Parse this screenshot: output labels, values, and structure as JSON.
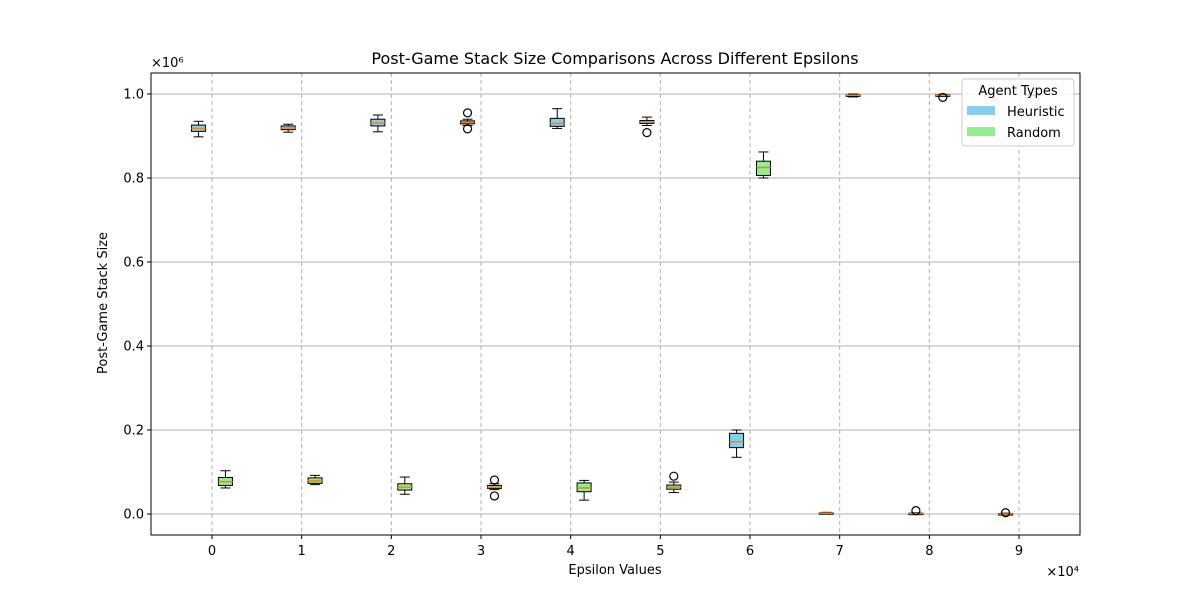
{
  "chart_data": {
    "type": "box",
    "title": "Post-Game Stack Size Comparisons Across Different Epsilons",
    "xlabel": "Epsilon Values",
    "ylabel": "Post-Game Stack Size",
    "x_multiplier_label": "×10⁴",
    "y_multiplier_label": "×10⁶",
    "xlim": [
      -0.68,
      9.68
    ],
    "ylim": [
      -0.05,
      1.05
    ],
    "x_ticks": [
      0,
      1,
      2,
      3,
      4,
      5,
      6,
      7,
      8,
      9
    ],
    "y_ticks": [
      0.0,
      0.2,
      0.4,
      0.6,
      0.8,
      1.0
    ],
    "x_tick_labels": [
      "0",
      "1",
      "2",
      "3",
      "4",
      "5",
      "6",
      "7",
      "8",
      "9"
    ],
    "y_tick_labels": [
      "0.0",
      "0.2",
      "0.4",
      "0.6",
      "0.8",
      "1.0"
    ],
    "grid": true,
    "legend_position": "top-right",
    "legend": {
      "title": "Agent Types",
      "entries": [
        {
          "label": "Heuristic",
          "color": "#87CEEB"
        },
        {
          "label": "Random",
          "color": "#90EE90"
        }
      ]
    },
    "median_color": "#ff7f0e",
    "series": [
      {
        "name": "Heuristic",
        "color": "#87CEEB",
        "boxes": [
          {
            "x": -0.15,
            "whisker_low": 0.898,
            "q1": 0.911,
            "median": 0.918,
            "q3": 0.926,
            "whisker_high": 0.935,
            "outliers": []
          },
          {
            "x": 0.85,
            "whisker_low": 0.909,
            "q1": 0.915,
            "median": 0.919,
            "q3": 0.924,
            "whisker_high": 0.928,
            "outliers": []
          },
          {
            "x": 1.85,
            "whisker_low": 0.91,
            "q1": 0.924,
            "median": 0.931,
            "q3": 0.94,
            "whisker_high": 0.95,
            "outliers": []
          },
          {
            "x": 2.85,
            "whisker_low": 0.925,
            "q1": 0.929,
            "median": 0.933,
            "q3": 0.936,
            "whisker_high": 0.94,
            "outliers": [
              0.955,
              0.917
            ]
          },
          {
            "x": 3.85,
            "whisker_low": 0.918,
            "q1": 0.923,
            "median": 0.93,
            "q3": 0.942,
            "whisker_high": 0.965,
            "outliers": []
          },
          {
            "x": 4.85,
            "whisker_low": 0.925,
            "q1": 0.93,
            "median": 0.934,
            "q3": 0.937,
            "whisker_high": 0.945,
            "outliers": [
              0.908
            ]
          },
          {
            "x": 5.85,
            "whisker_low": 0.135,
            "q1": 0.158,
            "median": 0.172,
            "q3": 0.192,
            "whisker_high": 0.2,
            "outliers": []
          },
          {
            "x": 6.85,
            "whisker_low": 0.0,
            "q1": 0.001,
            "median": 0.002,
            "q3": 0.003,
            "whisker_high": 0.004,
            "outliers": []
          },
          {
            "x": 7.85,
            "whisker_low": 0.0,
            "q1": 0.0,
            "median": 0.001,
            "q3": 0.002,
            "whisker_high": 0.003,
            "outliers": [
              0.008
            ]
          },
          {
            "x": 8.85,
            "whisker_low": 0.0,
            "q1": 0.0,
            "median": 0.0,
            "q3": 0.001,
            "whisker_high": 0.002,
            "outliers": [
              0.003
            ]
          }
        ]
      },
      {
        "name": "Random",
        "color": "#90EE90",
        "boxes": [
          {
            "x": 0.15,
            "whisker_low": 0.062,
            "q1": 0.068,
            "median": 0.077,
            "q3": 0.087,
            "whisker_high": 0.103,
            "outliers": []
          },
          {
            "x": 1.15,
            "whisker_low": 0.07,
            "q1": 0.073,
            "median": 0.079,
            "q3": 0.086,
            "whisker_high": 0.092,
            "outliers": []
          },
          {
            "x": 2.15,
            "whisker_low": 0.047,
            "q1": 0.057,
            "median": 0.064,
            "q3": 0.072,
            "whisker_high": 0.088,
            "outliers": []
          },
          {
            "x": 3.15,
            "whisker_low": 0.058,
            "q1": 0.061,
            "median": 0.064,
            "q3": 0.068,
            "whisker_high": 0.072,
            "outliers": [
              0.081,
              0.043
            ]
          },
          {
            "x": 4.15,
            "whisker_low": 0.033,
            "q1": 0.053,
            "median": 0.062,
            "q3": 0.074,
            "whisker_high": 0.08,
            "outliers": []
          },
          {
            "x": 5.15,
            "whisker_low": 0.051,
            "q1": 0.059,
            "median": 0.064,
            "q3": 0.069,
            "whisker_high": 0.076,
            "outliers": [
              0.09
            ]
          },
          {
            "x": 6.15,
            "whisker_low": 0.8,
            "q1": 0.806,
            "median": 0.825,
            "q3": 0.84,
            "whisker_high": 0.862,
            "outliers": []
          },
          {
            "x": 7.15,
            "whisker_low": 0.993,
            "q1": 0.995,
            "median": 0.997,
            "q3": 0.998,
            "whisker_high": 1.0,
            "outliers": []
          },
          {
            "x": 8.15,
            "whisker_low": 0.995,
            "q1": 0.996,
            "median": 0.997,
            "q3": 0.998,
            "whisker_high": 0.999,
            "outliers": [
              0.992
            ]
          },
          {
            "x": 9.15,
            "whisker_low": 0.998,
            "q1": 0.999,
            "median": 0.999,
            "q3": 1.0,
            "whisker_high": 1.0,
            "outliers": []
          }
        ]
      }
    ]
  }
}
